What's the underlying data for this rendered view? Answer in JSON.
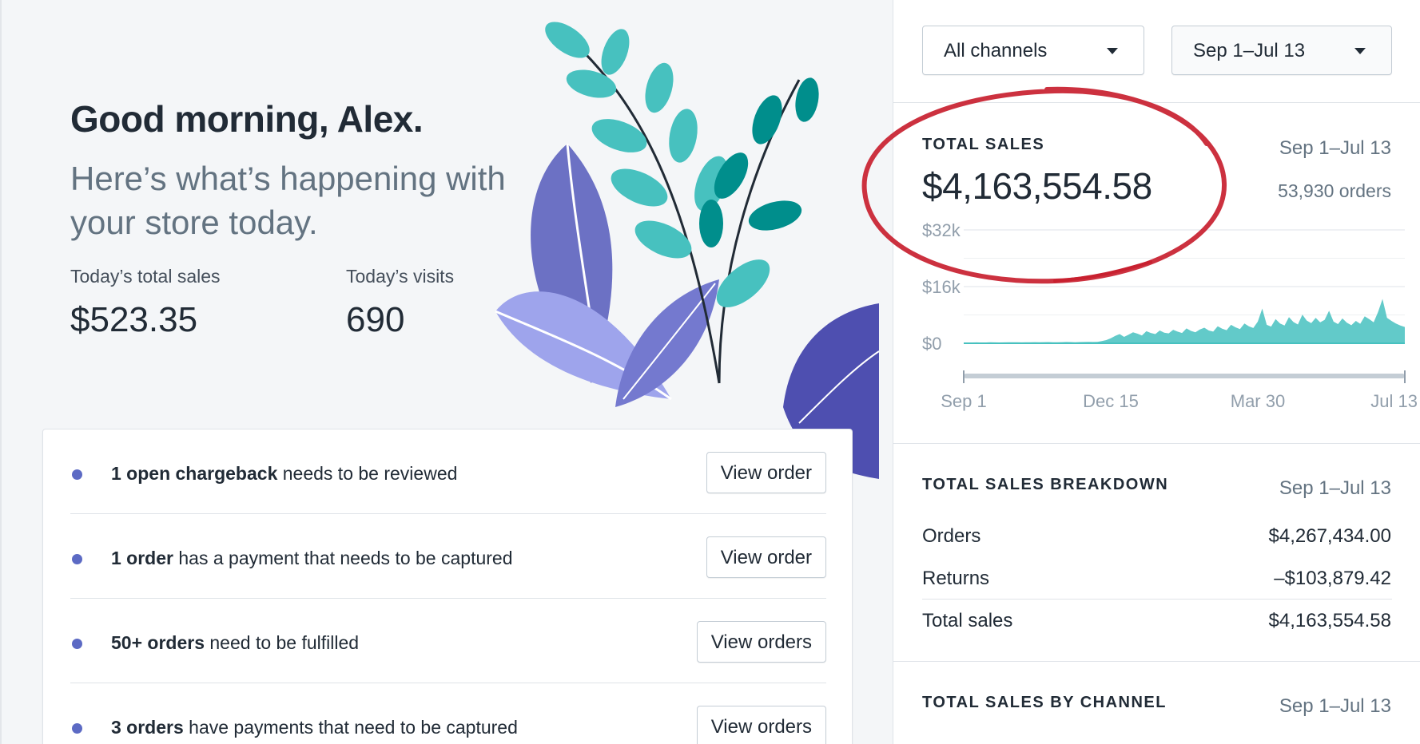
{
  "greeting": "Good morning, Alex.",
  "subtitle": "Here’s what’s happening with your store today.",
  "stats": [
    {
      "label": "Today’s total sales",
      "value": "$523.35"
    },
    {
      "label": "Today’s visits",
      "value": "690"
    }
  ],
  "tasks": [
    {
      "bold": "1 open chargeback",
      "rest": " needs to be reviewed",
      "button": "View order"
    },
    {
      "bold": "1 order",
      "rest": " has a payment that needs to be captured",
      "button": "View order"
    },
    {
      "bold": "50+ orders",
      "rest": " need to be fulfilled",
      "button": "View orders"
    },
    {
      "bold": "3 orders",
      "rest": " have payments that need to be captured",
      "button": "View orders"
    }
  ],
  "filters": {
    "channel": "All channels",
    "date_range": "Sep 1–Jul 13"
  },
  "total_sales": {
    "title": "TOTAL SALES",
    "date": "Sep 1–Jul 13",
    "amount": "$4,163,554.58",
    "orders": "53,930 orders"
  },
  "breakdown": {
    "title": "TOTAL SALES BREAKDOWN",
    "date": "Sep 1–Jul 13",
    "rows": [
      {
        "label": "Orders",
        "value": "$4,267,434.00"
      },
      {
        "label": "Returns",
        "value": "–$103,879.42"
      },
      {
        "label": "Total sales",
        "value": "$4,163,554.58"
      }
    ]
  },
  "by_channel": {
    "title": "TOTAL SALES BY CHANNEL",
    "date": "Sep 1–Jul 13"
  },
  "colors": {
    "accent": "#5c6ac4",
    "chart": "#47c1bf",
    "annotation": "#c8202f"
  },
  "chart_data": {
    "type": "area",
    "y_ticks": [
      "$32k",
      "$16k",
      "$0"
    ],
    "ylim": [
      0,
      32000
    ],
    "x_ticks": [
      "Sep 1",
      "Dec 15",
      "Mar 30",
      "Jul 13"
    ],
    "grid": true,
    "series": [
      {
        "values": [
          200,
          180,
          220,
          250,
          210,
          230,
          260,
          240,
          220,
          250,
          270,
          300,
          260,
          240,
          280,
          300,
          320,
          290,
          310,
          330,
          300,
          280,
          320,
          350,
          330,
          300,
          340,
          360,
          380,
          350,
          400,
          600,
          900,
          1400,
          2100,
          2600,
          1800,
          2400,
          3100,
          2700,
          2200,
          3400,
          2900,
          2600,
          3600,
          3000,
          2800,
          3800,
          3300,
          2900,
          4200,
          3500,
          3100,
          3900,
          4400,
          3600,
          3300,
          4800,
          4100,
          3700,
          5200,
          4500,
          4000,
          5600,
          4800,
          4300,
          6100,
          9800,
          5200,
          4700,
          6800,
          5600,
          5000,
          7400,
          6000,
          5300,
          8100,
          6400,
          5700,
          7200,
          5900,
          6600,
          9200,
          6100,
          5400,
          7000,
          5800,
          5100,
          6300,
          5500,
          7600,
          6800,
          5900,
          8800,
          12500,
          7200,
          6300,
          5600,
          5000,
          4600
        ]
      }
    ]
  }
}
